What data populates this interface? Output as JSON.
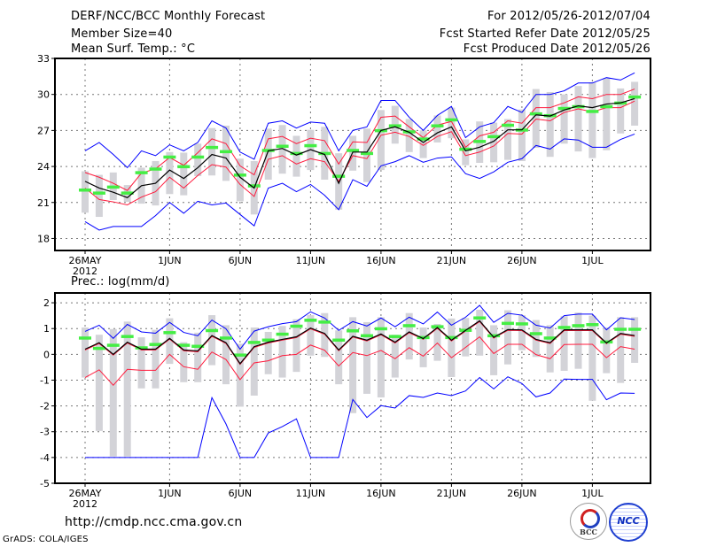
{
  "header": {
    "title": "DERF/NCC/BCC Monthly Forecast",
    "member_size": "Member Size=40",
    "period": "For 2012/05/26-2012/07/04",
    "started": "Fcst Started Refer Date 2012/05/25",
    "produced": "Fcst Produced Date 2012/05/26"
  },
  "footer": {
    "url": "http://cmdp.ncc.cma.gov.cn",
    "grads": "GrADS: COLA/IGES",
    "logo_bcc": "BCC",
    "logo_ncc": "NCC"
  },
  "colors": {
    "max_min": "#0000ff",
    "spread": "#ff1a3c",
    "mean": "#000000",
    "highlight": "#44ee44",
    "range": "#d3d3d8",
    "grid": "#777777"
  },
  "chart_data": [
    {
      "type": "line",
      "title": "Mean Surf. Temp.: °C",
      "x_start": "2012-05-26",
      "n_days": 40,
      "xticks": [
        {
          "day": 0,
          "label": "26MAY",
          "sub": "2012"
        },
        {
          "day": 6,
          "label": "1JUN"
        },
        {
          "day": 11,
          "label": "6JUN"
        },
        {
          "day": 16,
          "label": "11JUN"
        },
        {
          "day": 21,
          "label": "16JUN"
        },
        {
          "day": 26,
          "label": "21JUN"
        },
        {
          "day": 31,
          "label": "26JUN"
        },
        {
          "day": 36,
          "label": "1JUL"
        }
      ],
      "yticks": [
        18,
        21,
        24,
        27,
        30,
        33
      ],
      "ylim": [
        17,
        33
      ],
      "grid": true,
      "series": {
        "max": [
          25.3,
          26.0,
          25.0,
          23.9,
          25.3,
          24.9,
          25.8,
          25.3,
          26.0,
          27.8,
          27.2,
          25.2,
          24.6,
          27.6,
          27.8,
          27.2,
          27.7,
          27.6,
          25.3,
          27.0,
          27.3,
          29.5,
          29.5,
          28.1,
          27.0,
          28.25,
          29.0,
          26.4,
          27.3,
          27.65,
          29.0,
          28.5,
          30.0,
          30.0,
          30.3,
          30.95,
          30.95,
          31.4,
          31.2,
          31.8
        ],
        "upper": [
          23.5,
          23.1,
          22.6,
          22.0,
          23.45,
          23.8,
          24.75,
          24.1,
          25.15,
          26.3,
          25.9,
          24.05,
          23.3,
          26.3,
          26.5,
          25.9,
          26.35,
          26.15,
          24.2,
          26.05,
          26.0,
          28.1,
          28.2,
          27.3,
          26.4,
          27.45,
          27.75,
          25.6,
          26.55,
          26.85,
          27.8,
          27.6,
          28.9,
          28.9,
          29.3,
          29.8,
          29.65,
          30.0,
          30.0,
          30.45
        ],
        "mean": [
          22.76,
          22.2,
          21.85,
          21.4,
          22.4,
          22.6,
          23.7,
          23.0,
          23.9,
          25.0,
          24.7,
          23.1,
          22.2,
          25.3,
          25.5,
          24.95,
          25.4,
          25.0,
          22.6,
          25.2,
          25.2,
          27.0,
          27.3,
          26.85,
          26.0,
          26.8,
          27.3,
          25.3,
          25.6,
          26.1,
          27.05,
          27.05,
          28.3,
          28.2,
          28.7,
          29.05,
          28.9,
          29.2,
          29.3,
          29.65
        ],
        "lower": [
          22.2,
          21.25,
          21.05,
          20.8,
          21.45,
          21.9,
          23.1,
          22.2,
          23.25,
          24.15,
          23.95,
          22.5,
          21.5,
          24.6,
          24.9,
          24.2,
          24.65,
          24.4,
          22.75,
          24.9,
          24.65,
          26.6,
          26.85,
          26.5,
          25.75,
          26.5,
          26.9,
          24.9,
          25.2,
          25.7,
          26.75,
          26.7,
          27.95,
          27.8,
          28.5,
          28.8,
          28.55,
          28.9,
          28.9,
          29.45
        ],
        "min": [
          19.4,
          18.7,
          19.0,
          19.0,
          19.0,
          19.9,
          21.0,
          20.1,
          21.1,
          20.8,
          20.95,
          20.0,
          19.05,
          22.2,
          22.6,
          21.9,
          22.5,
          21.6,
          20.4,
          22.9,
          22.35,
          24.05,
          24.4,
          24.9,
          24.35,
          24.7,
          24.8,
          23.4,
          23.0,
          23.55,
          24.35,
          24.65,
          25.75,
          25.45,
          26.3,
          26.2,
          25.6,
          25.6,
          26.25,
          26.7
        ],
        "highlight": [
          22.05,
          21.8,
          22.3,
          21.8,
          23.5,
          23.8,
          24.8,
          24.0,
          24.8,
          25.6,
          25.25,
          23.3,
          22.4,
          25.35,
          25.7,
          25.1,
          25.75,
          25.1,
          23.2,
          25.35,
          25.1,
          27.0,
          27.4,
          26.9,
          26.3,
          27.4,
          27.9,
          25.45,
          26.1,
          26.5,
          27.45,
          27.05,
          28.4,
          28.25,
          28.85,
          29.0,
          28.6,
          29.0,
          29.3,
          29.8
        ],
        "range_high": [
          23.6,
          23.3,
          23.5,
          22.45,
          23.9,
          24.45,
          25.2,
          25.15,
          25.9,
          27.2,
          27.4,
          24.65,
          24.45,
          27.15,
          27.45,
          26.55,
          27.05,
          27.3,
          25.1,
          26.55,
          27.15,
          28.7,
          29.05,
          27.95,
          27.0,
          28.25,
          28.9,
          26.25,
          27.75,
          27.65,
          27.95,
          28.75,
          30.45,
          30.2,
          30.0,
          30.7,
          31.0,
          31.35,
          30.5,
          31.05
        ],
        "range_low": [
          20.15,
          19.8,
          21.2,
          21.05,
          20.9,
          20.75,
          21.7,
          21.6,
          23.2,
          23.25,
          22.8,
          21.1,
          20.0,
          22.9,
          23.4,
          23.15,
          23.7,
          22.9,
          20.4,
          23.65,
          22.7,
          23.7,
          25.9,
          25.2,
          24.7,
          26.0,
          26.35,
          24.1,
          24.3,
          24.35,
          24.55,
          24.45,
          25.55,
          24.8,
          25.9,
          25.25,
          24.7,
          25.35,
          26.75,
          27.4
        ]
      }
    },
    {
      "type": "line",
      "title": "Prec.: log(mm/d)",
      "x_start": "2012-05-26",
      "n_days": 40,
      "xticks": [
        {
          "day": 0,
          "label": "26MAY",
          "sub": "2012"
        },
        {
          "day": 6,
          "label": "1JUN"
        },
        {
          "day": 11,
          "label": "6JUN"
        },
        {
          "day": 16,
          "label": "11JUN"
        },
        {
          "day": 21,
          "label": "16JUN"
        },
        {
          "day": 26,
          "label": "21JUN"
        },
        {
          "day": 31,
          "label": "26JUN"
        },
        {
          "day": 36,
          "label": "1JUL"
        }
      ],
      "yticks": [
        -5,
        -4,
        -3,
        -2,
        -1,
        0,
        1,
        2
      ],
      "ylim": [
        -5,
        2.38
      ],
      "grid": true,
      "series": {
        "max": [
          0.89,
          1.13,
          0.62,
          1.16,
          0.87,
          0.82,
          1.24,
          0.85,
          0.72,
          1.33,
          0.99,
          0.2,
          0.9,
          1.07,
          1.19,
          1.27,
          1.65,
          1.41,
          0.93,
          1.27,
          1.1,
          1.41,
          1.07,
          1.44,
          1.18,
          1.64,
          1.13,
          1.44,
          1.9,
          1.24,
          1.59,
          1.52,
          1.13,
          1.02,
          1.5,
          1.56,
          1.56,
          0.95,
          1.42,
          1.35
        ],
        "upper": [
          0.17,
          0.42,
          -0.03,
          0.44,
          0.17,
          0.17,
          0.59,
          0.14,
          0.1,
          0.7,
          0.42,
          -0.39,
          0.27,
          0.44,
          0.55,
          0.65,
          0.99,
          0.78,
          0.14,
          0.67,
          0.52,
          0.76,
          0.44,
          0.84,
          0.58,
          1.01,
          0.52,
          0.9,
          1.27,
          0.63,
          0.93,
          0.92,
          0.55,
          0.42,
          0.92,
          0.92,
          0.92,
          0.41,
          0.78,
          0.7
        ],
        "mean": [
          0.2,
          0.45,
          0.0,
          0.47,
          0.2,
          0.2,
          0.62,
          0.17,
          0.13,
          0.73,
          0.45,
          -0.36,
          0.3,
          0.47,
          0.58,
          0.68,
          1.02,
          0.81,
          0.17,
          0.7,
          0.55,
          0.79,
          0.47,
          0.87,
          0.61,
          1.04,
          0.55,
          0.93,
          1.3,
          0.66,
          0.96,
          0.95,
          0.58,
          0.45,
          0.95,
          0.95,
          0.95,
          0.44,
          0.81,
          0.73
        ],
        "lower": [
          -0.9,
          -0.6,
          -1.2,
          -0.58,
          -0.62,
          -0.62,
          0.0,
          -0.48,
          -0.58,
          0.09,
          -0.2,
          -0.98,
          -0.33,
          -0.25,
          -0.05,
          0.0,
          0.36,
          0.16,
          -0.45,
          0.07,
          -0.05,
          0.15,
          -0.17,
          0.26,
          -0.07,
          0.44,
          -0.13,
          0.27,
          0.68,
          0.03,
          0.39,
          0.39,
          -0.01,
          -0.17,
          0.38,
          0.39,
          0.39,
          -0.13,
          0.3,
          0.2
        ],
        "min": [
          -4,
          -4,
          -4,
          -4,
          -4,
          -4,
          -4,
          -4,
          -4,
          -1.68,
          -2.7,
          -4,
          -4,
          -3.05,
          -2.8,
          -2.5,
          -4,
          -4,
          -4,
          -1.75,
          -2.45,
          -1.99,
          -2.08,
          -1.6,
          -1.67,
          -1.5,
          -1.6,
          -1.42,
          -0.9,
          -1.34,
          -0.87,
          -1.13,
          -1.65,
          -1.5,
          -0.96,
          -0.97,
          -0.97,
          -1.76,
          -1.5,
          -1.51
        ],
        "highlight": [
          0.64,
          0.24,
          0.36,
          0.7,
          0.26,
          0.39,
          0.85,
          0.36,
          0.32,
          0.93,
          0.64,
          -0.02,
          0.47,
          0.56,
          0.79,
          1.1,
          1.33,
          1.26,
          0.56,
          0.92,
          0.73,
          1.0,
          0.7,
          1.12,
          0.66,
          1.08,
          0.66,
          0.94,
          1.42,
          0.73,
          1.21,
          1.19,
          0.81,
          0.64,
          1.05,
          1.12,
          1.16,
          0.49,
          0.98,
          0.98
        ],
        "range_high": [
          1.04,
          0.76,
          0.98,
          1.27,
          0.66,
          0.95,
          1.4,
          0.47,
          0.84,
          1.52,
          1.13,
          0.41,
          1.04,
          0.87,
          1.1,
          1.36,
          1.52,
          1.6,
          0.93,
          1.44,
          1.25,
          1.44,
          0.76,
          1.6,
          1.04,
          1.18,
          1.39,
          1.41,
          1.73,
          1.13,
          1.71,
          1.52,
          1.33,
          1.13,
          1.48,
          1.62,
          1.5,
          1.04,
          1.44,
          1.44
        ],
        "range_low": [
          -0.9,
          -2.97,
          -3.96,
          -3.96,
          -1.32,
          -1.32,
          -0.37,
          -1.08,
          -1.08,
          -0.42,
          -1.16,
          -2.03,
          -1.6,
          -0.77,
          -0.9,
          -0.68,
          -0.05,
          -0.1,
          -1.16,
          -2.28,
          -1.53,
          -1.67,
          -0.9,
          -0.2,
          -0.5,
          -0.25,
          -0.88,
          -0.08,
          -0.05,
          -0.81,
          -0.39,
          0.16,
          -0.1,
          -0.7,
          -0.64,
          -0.56,
          -1.8,
          -0.73,
          -1.11,
          -0.33
        ]
      }
    }
  ]
}
